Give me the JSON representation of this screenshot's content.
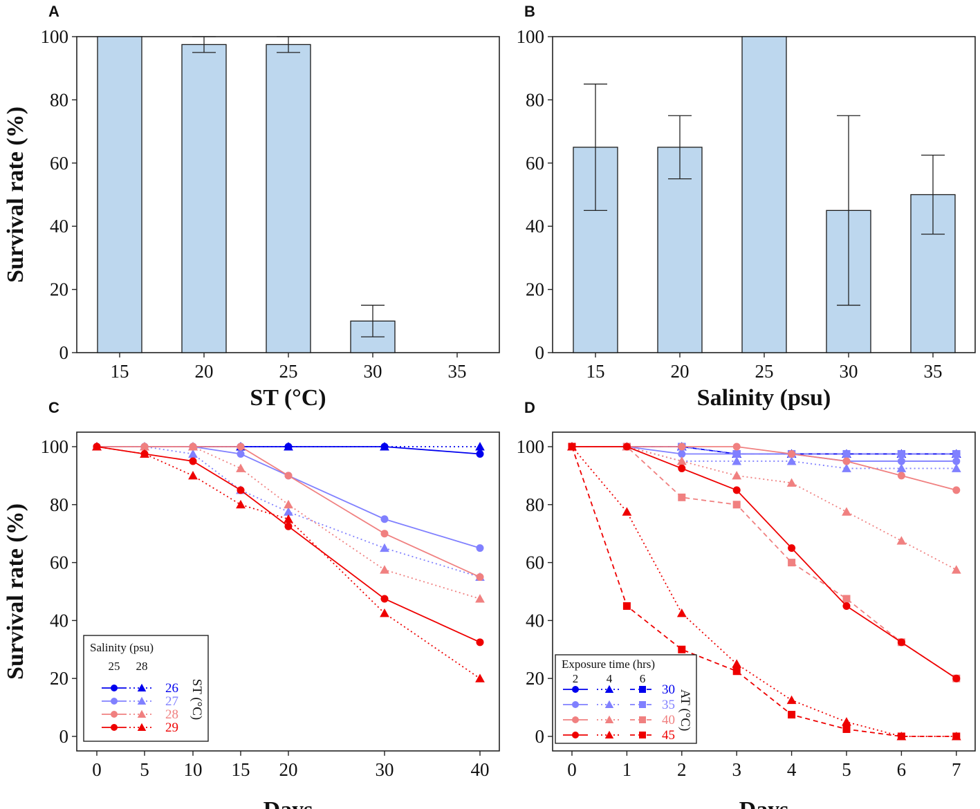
{
  "colors": {
    "bar_fill": "#bdd7ee",
    "bar_edge": "#1a1a1a",
    "series": [
      "#0000ee",
      "#8080ff",
      "#f08080",
      "#ee0000"
    ]
  },
  "chart_data": [
    {
      "panel": "A",
      "type": "bar",
      "title": "",
      "xlabel": "ST (°C)",
      "ylabel": "Survival rate (%)",
      "categories": [
        "15",
        "20",
        "25",
        "30",
        "35"
      ],
      "values": [
        100,
        97.5,
        97.5,
        10,
        0
      ],
      "errors": [
        0,
        2.5,
        2.5,
        5,
        0
      ],
      "ylim": [
        0,
        100
      ],
      "yticks": [
        0,
        20,
        40,
        60,
        80,
        100
      ]
    },
    {
      "panel": "B",
      "type": "bar",
      "title": "",
      "xlabel": "Salinity (psu)",
      "ylabel": "",
      "categories": [
        "15",
        "20",
        "25",
        "30",
        "35"
      ],
      "values": [
        65,
        65,
        100,
        45,
        50
      ],
      "errors": [
        20,
        10,
        0,
        30,
        12.5
      ],
      "ylim": [
        0,
        100
      ],
      "yticks": [
        0,
        20,
        40,
        60,
        80,
        100
      ]
    },
    {
      "panel": "C",
      "type": "line",
      "xlabel": "Days",
      "ylabel": "Survival rate (%)",
      "x": [
        0,
        5,
        10,
        15,
        20,
        30,
        40
      ],
      "xticks": [
        0,
        5,
        10,
        15,
        20,
        30,
        40
      ],
      "ylim": [
        0,
        100
      ],
      "yticks": [
        0,
        20,
        40,
        60,
        80,
        100
      ],
      "legend": {
        "title": "Salinity (psu)",
        "columns": [
          "25",
          "28"
        ],
        "rows": [
          "26",
          "27",
          "28",
          "29"
        ],
        "side_label": "ST (°C)",
        "placement": "lower-left"
      },
      "series": [
        {
          "name": "25 psu, 26 °C",
          "marker": "circle",
          "dash": "solid",
          "color_index": 0,
          "values": [
            100,
            100,
            100,
            100,
            100,
            100,
            97.5
          ]
        },
        {
          "name": "28 psu, 26 °C",
          "marker": "triangle",
          "dash": "dotted",
          "color_index": 0,
          "values": [
            100,
            100,
            100,
            100,
            100,
            100,
            100
          ]
        },
        {
          "name": "25 psu, 27 °C",
          "marker": "circle",
          "dash": "solid",
          "color_index": 1,
          "values": [
            100,
            100,
            100,
            97.5,
            90,
            75,
            65
          ]
        },
        {
          "name": "28 psu, 27 °C",
          "marker": "triangle",
          "dash": "dotted",
          "color_index": 1,
          "values": [
            100,
            100,
            97.5,
            85,
            77.5,
            65,
            55
          ]
        },
        {
          "name": "25 psu, 28 °C",
          "marker": "circle",
          "dash": "solid",
          "color_index": 2,
          "values": [
            100,
            100,
            100,
            100,
            90,
            70,
            55
          ]
        },
        {
          "name": "28 psu, 28 °C",
          "marker": "triangle",
          "dash": "dotted",
          "color_index": 2,
          "values": [
            100,
            100,
            100,
            92.5,
            80,
            57.5,
            47.5
          ]
        },
        {
          "name": "25 psu, 29 °C",
          "marker": "circle",
          "dash": "solid",
          "color_index": 3,
          "values": [
            100,
            97.5,
            95,
            85,
            72.5,
            47.5,
            32.5
          ]
        },
        {
          "name": "28 psu, 29 °C",
          "marker": "triangle",
          "dash": "dotted",
          "color_index": 3,
          "values": [
            100,
            97.5,
            90,
            80,
            75,
            42.5,
            20
          ]
        }
      ]
    },
    {
      "panel": "D",
      "type": "line",
      "xlabel": "Days",
      "ylabel": "",
      "x": [
        0,
        1,
        2,
        3,
        4,
        5,
        6,
        7
      ],
      "xticks": [
        0,
        1,
        2,
        3,
        4,
        5,
        6,
        7
      ],
      "ylim": [
        0,
        100
      ],
      "yticks": [
        0,
        20,
        40,
        60,
        80,
        100
      ],
      "legend": {
        "title": "Exposure time (hrs)",
        "columns": [
          "2",
          "4",
          "6"
        ],
        "rows": [
          "30",
          "35",
          "40",
          "45"
        ],
        "side_label": "AT (°C)",
        "placement": "lower-left"
      },
      "series": [
        {
          "name": "2 hrs, 30 °C",
          "marker": "circle",
          "dash": "solid",
          "color_index": 0,
          "values": [
            100,
            100,
            100,
            97.5,
            97.5,
            97.5,
            97.5,
            97.5
          ]
        },
        {
          "name": "4 hrs, 30 °C",
          "marker": "triangle",
          "dash": "dotted",
          "color_index": 0,
          "values": [
            100,
            100,
            100,
            97.5,
            97.5,
            97.5,
            97.5,
            97.5
          ]
        },
        {
          "name": "6 hrs, 30 °C",
          "marker": "square",
          "dash": "dashed",
          "color_index": 0,
          "values": [
            100,
            100,
            100,
            97.5,
            97.5,
            97.5,
            97.5,
            97.5
          ]
        },
        {
          "name": "2 hrs, 35 °C",
          "marker": "circle",
          "dash": "solid",
          "color_index": 1,
          "values": [
            100,
            100,
            97.5,
            97.5,
            97.5,
            95,
            95,
            95
          ]
        },
        {
          "name": "4 hrs, 35 °C",
          "marker": "triangle",
          "dash": "dotted",
          "color_index": 1,
          "values": [
            100,
            100,
            95,
            95,
            95,
            92.5,
            92.5,
            92.5
          ]
        },
        {
          "name": "6 hrs, 35 °C",
          "marker": "square",
          "dash": "dashed",
          "color_index": 1,
          "values": [
            100,
            100,
            100,
            97.5,
            97.5,
            97.5,
            97.5,
            97.5
          ]
        },
        {
          "name": "2 hrs, 40 °C",
          "marker": "circle",
          "dash": "solid",
          "color_index": 2,
          "values": [
            100,
            100,
            100,
            100,
            97.5,
            95,
            90,
            85
          ]
        },
        {
          "name": "4 hrs, 40 °C",
          "marker": "triangle",
          "dash": "dotted",
          "color_index": 2,
          "values": [
            100,
            100,
            95,
            90,
            87.5,
            77.5,
            67.5,
            57.5
          ]
        },
        {
          "name": "6 hrs, 40 °C",
          "marker": "square",
          "dash": "dashed",
          "color_index": 2,
          "values": [
            100,
            100,
            82.5,
            80,
            60,
            47.5,
            32.5,
            20
          ]
        },
        {
          "name": "2 hrs, 45 °C",
          "marker": "circle",
          "dash": "solid",
          "color_index": 3,
          "values": [
            100,
            100,
            92.5,
            85,
            65,
            45,
            32.5,
            20
          ]
        },
        {
          "name": "4 hrs, 45 °C",
          "marker": "triangle",
          "dash": "dotted",
          "color_index": 3,
          "values": [
            100,
            77.5,
            42.5,
            25,
            12.5,
            5,
            0,
            0
          ]
        },
        {
          "name": "6 hrs, 45 °C",
          "marker": "square",
          "dash": "dashed",
          "color_index": 3,
          "values": [
            100,
            45,
            30,
            22.5,
            7.5,
            2.5,
            0,
            0
          ]
        }
      ]
    }
  ]
}
